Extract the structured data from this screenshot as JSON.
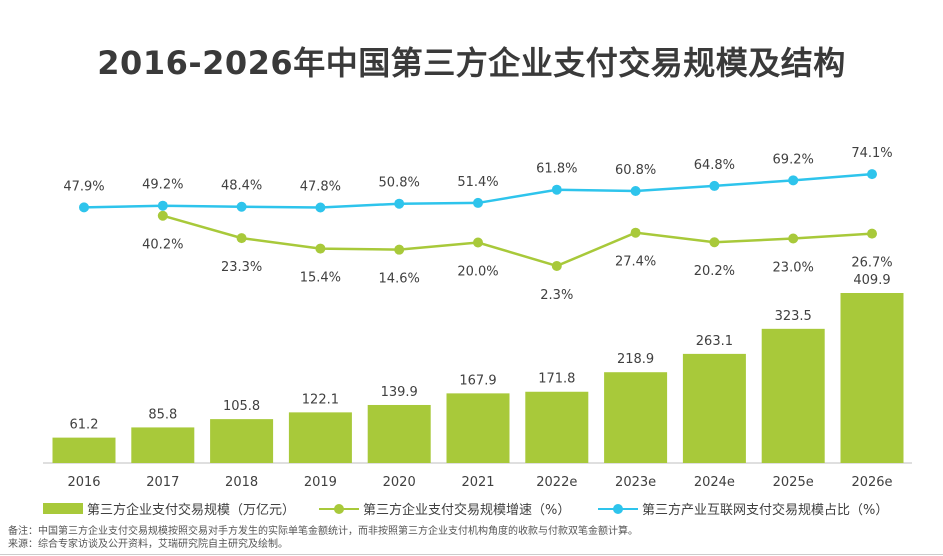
{
  "title": "2016-2026年中国第三方企业支付交易规模及结构",
  "chart_data": {
    "type": "bar+line",
    "categories": [
      "2016",
      "2017",
      "2018",
      "2019",
      "2020",
      "2021",
      "2022e",
      "2023e",
      "2024e",
      "2025e",
      "2026e"
    ],
    "series": [
      {
        "name": "第三方企业支付交易规模（万亿元）",
        "kind": "bar",
        "color": "#a8c93a",
        "values": [
          61.2,
          85.8,
          105.8,
          122.1,
          139.9,
          167.9,
          171.8,
          218.9,
          263.1,
          323.5,
          409.9
        ],
        "labels": [
          "61.2",
          "85.8",
          "105.8",
          "122.1",
          "139.9",
          "167.9",
          "171.8",
          "218.9",
          "263.1",
          "323.5",
          "409.9"
        ]
      },
      {
        "name": "第三方企业支付交易规模增速（%）",
        "kind": "line",
        "color": "#a8c93a",
        "values": [
          null,
          40.2,
          23.3,
          15.4,
          14.6,
          20.0,
          2.3,
          27.4,
          20.2,
          23.0,
          26.7
        ],
        "labels": [
          "",
          "40.2%",
          "23.3%",
          "15.4%",
          "14.6%",
          "20.0%",
          "2.3%",
          "27.4%",
          "20.2%",
          "23.0%",
          "26.7%"
        ]
      },
      {
        "name": "第三方产业互联网支付交易规模占比（%）",
        "kind": "line",
        "color": "#2ec4ec",
        "values": [
          47.9,
          49.2,
          48.4,
          47.8,
          50.8,
          51.4,
          61.8,
          60.8,
          64.8,
          69.2,
          74.1
        ],
        "labels": [
          "47.9%",
          "49.2%",
          "48.4%",
          "47.8%",
          "50.8%",
          "51.4%",
          "61.8%",
          "60.8%",
          "64.8%",
          "69.2%",
          "74.1%"
        ]
      }
    ],
    "legend_position": "bottom",
    "grid": false
  },
  "notes": {
    "note": "备注：中国第三方企业支付交易规模按照交易对手方发生的实际单笔金额统计，而非按照第三方企业支付机构角度的收款与付款双笔金额计算。",
    "source": "来源：综合专家访谈及公开资料，艾瑞研究院自主研究及绘制。"
  }
}
